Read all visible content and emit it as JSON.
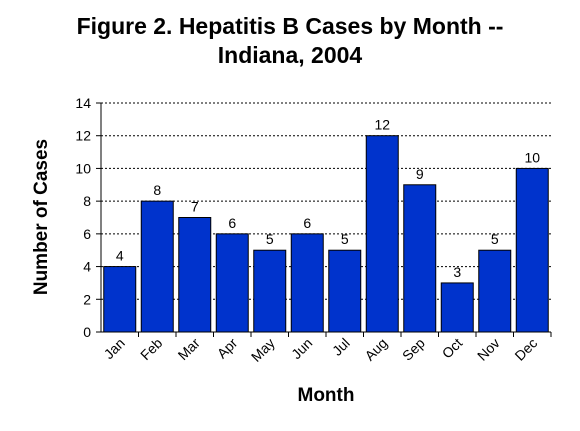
{
  "chart_data": {
    "type": "bar",
    "title_lines": [
      "Figure 2.  Hepatitis B Cases by Month --",
      "Indiana, 2004"
    ],
    "xlabel": "Month",
    "ylabel": "Number of Cases",
    "categories": [
      "Jan",
      "Feb",
      "Mar",
      "Apr",
      "May",
      "Jun",
      "Jul",
      "Aug",
      "Sep",
      "Oct",
      "Nov",
      "Dec"
    ],
    "values": [
      4,
      8,
      7,
      6,
      5,
      6,
      5,
      12,
      9,
      3,
      5,
      10
    ],
    "ylim": [
      0,
      14
    ],
    "yticks": [
      "0",
      "2",
      "4",
      "6",
      "8",
      "10",
      "12",
      "14"
    ],
    "grid": "dashed horizontal",
    "bar_color": "#0033cc"
  }
}
